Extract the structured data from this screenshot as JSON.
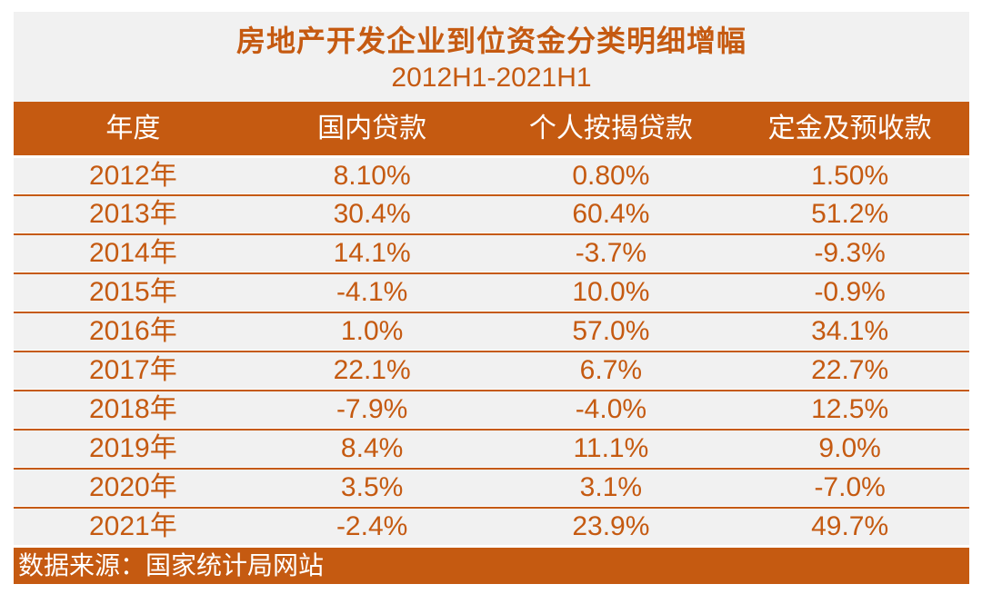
{
  "colors": {
    "accent": "#C55A11",
    "row_bg": "#F1F1F1",
    "panel_bg": "#F1F1F1",
    "page_bg": "#FFFFFF",
    "header_text": "#FFFFFF"
  },
  "header": {
    "title": "房地产开发企业到位资金分类明细增幅",
    "subtitle": "2012H1-2021H1"
  },
  "footer": {
    "source_note": "数据来源：国家统计局网站"
  },
  "chart_data": {
    "type": "table",
    "title": "房地产开发企业到位资金分类明细增幅",
    "subtitle": "2012H1-2021H1",
    "columns": [
      "年度",
      "国内贷款",
      "个人按揭贷款",
      "定金及预收款"
    ],
    "rows": [
      {
        "year": "2012年",
        "values": [
          "8.10%",
          "0.80%",
          "1.50%"
        ]
      },
      {
        "year": "2013年",
        "values": [
          "30.4%",
          "60.4%",
          "51.2%"
        ]
      },
      {
        "year": "2014年",
        "values": [
          "14.1%",
          "-3.7%",
          "-9.3%"
        ]
      },
      {
        "year": "2015年",
        "values": [
          "-4.1%",
          "10.0%",
          "-0.9%"
        ]
      },
      {
        "year": "2016年",
        "values": [
          "1.0%",
          "57.0%",
          "34.1%"
        ]
      },
      {
        "year": "2017年",
        "values": [
          "22.1%",
          "6.7%",
          "22.7%"
        ]
      },
      {
        "year": "2018年",
        "values": [
          "-7.9%",
          "-4.0%",
          "12.5%"
        ]
      },
      {
        "year": "2019年",
        "values": [
          "8.4%",
          "11.1%",
          "9.0%"
        ]
      },
      {
        "year": "2020年",
        "values": [
          "3.5%",
          "3.1%",
          "-7.0%"
        ]
      },
      {
        "year": "2021年",
        "values": [
          "-2.4%",
          "23.9%",
          "49.7%"
        ]
      }
    ],
    "source_note": "数据来源：国家统计局网站",
    "layout_hints": {
      "columns_equal_width": true,
      "row_banding": "single-tone-gray",
      "divider": "orange-rule"
    }
  }
}
